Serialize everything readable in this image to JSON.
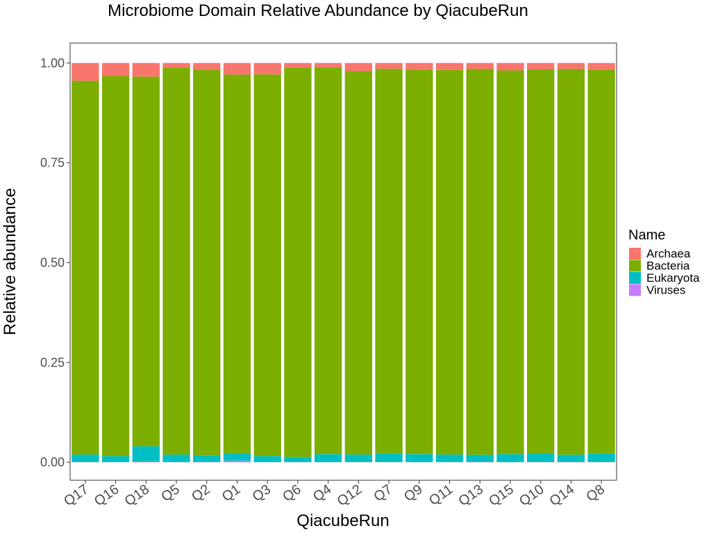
{
  "chart_data": {
    "type": "bar",
    "stacked": true,
    "title": "Microbiome Domain Relative Abundance by QiacubeRun",
    "xlabel": "QiacubeRun",
    "ylabel": "Relative abundance",
    "ylim": [
      -0.045,
      1.05
    ],
    "yticks": [
      "0.00",
      "0.25",
      "0.50",
      "0.75",
      "1.00"
    ],
    "grid": false,
    "legend_placement": "right",
    "legend_title": "Name",
    "categories": [
      "Q17",
      "Q16",
      "Q18",
      "Q5",
      "Q2",
      "Q1",
      "Q3",
      "Q6",
      "Q4",
      "Q12",
      "Q7",
      "Q9",
      "Q11",
      "Q13",
      "Q15",
      "Q10",
      "Q14",
      "Q8"
    ],
    "series": [
      {
        "name": "Viruses",
        "color": "#C77CFF",
        "values": [
          0.0005,
          0.0005,
          0.002,
          0.0005,
          0.001,
          0.004,
          0.0005,
          0.0005,
          0.0005,
          0.0005,
          0.0005,
          0.0005,
          0.0005,
          0.001,
          0.0005,
          0.001,
          0.001,
          0.0005
        ]
      },
      {
        "name": "Eukaryota",
        "color": "#00BFC4",
        "values": [
          0.019,
          0.015,
          0.038,
          0.019,
          0.016,
          0.018,
          0.015,
          0.013,
          0.02,
          0.019,
          0.021,
          0.02,
          0.019,
          0.018,
          0.02,
          0.02,
          0.018,
          0.021
        ]
      },
      {
        "name": "Bacteria",
        "color": "#7CAE00",
        "values": [
          0.936,
          0.952,
          0.926,
          0.969,
          0.966,
          0.949,
          0.956,
          0.974,
          0.969,
          0.96,
          0.964,
          0.963,
          0.963,
          0.966,
          0.961,
          0.963,
          0.966,
          0.962
        ]
      },
      {
        "name": "Archaea",
        "color": "#F8766D",
        "values": [
          0.0445,
          0.0325,
          0.034,
          0.0115,
          0.017,
          0.029,
          0.0285,
          0.0125,
          0.0105,
          0.0205,
          0.0145,
          0.0165,
          0.0175,
          0.015,
          0.0185,
          0.016,
          0.015,
          0.0165
        ]
      }
    ],
    "legend_order": [
      "Archaea",
      "Bacteria",
      "Eukaryota",
      "Viruses"
    ]
  }
}
